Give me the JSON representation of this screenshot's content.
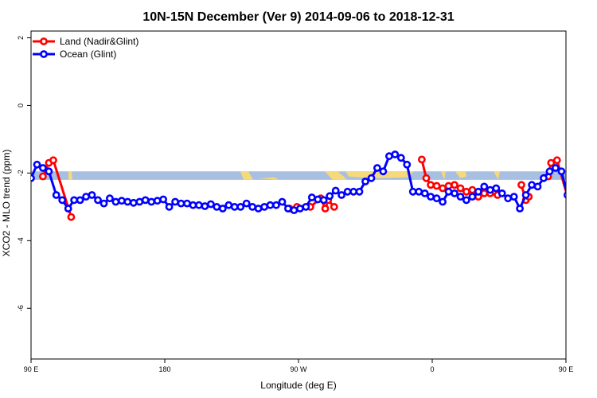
{
  "chart_data": {
    "type": "line",
    "title": "10N-15N December (Ver 9)   2014-09-06 to 2018-12-31",
    "xlabel": "Longitude (deg E)",
    "ylabel": "XCO2 - MLO trend (ppm)",
    "xlim": [
      90,
      450
    ],
    "ylim": [
      -7.5,
      2.2
    ],
    "xticks": [
      {
        "value": 90,
        "label": "90 E"
      },
      {
        "value": 180,
        "label": "180"
      },
      {
        "value": 270,
        "label": "90 W"
      },
      {
        "value": 360,
        "label": "0"
      },
      {
        "value": 450,
        "label": "90 E"
      },
      {
        "value": 540,
        "label": "180"
      }
    ],
    "yticks": [
      {
        "value": 2,
        "label": "2"
      },
      {
        "value": 0,
        "label": "0"
      },
      {
        "value": -2,
        "label": "-2"
      },
      {
        "value": -4,
        "label": "-4"
      },
      {
        "value": -6,
        "label": "-6"
      }
    ],
    "legend_position": "top-left",
    "background_band": {
      "y_min": -2.2,
      "y_max": -1.95,
      "color": "#a7bfe0",
      "land_color": "#f6d97a"
    },
    "series": [
      {
        "name": "Land (Nadir&Glint)",
        "color": "#ff0000",
        "points": [
          [
            98,
            -2.1
          ],
          [
            102,
            -1.7
          ],
          [
            105,
            -1.62
          ],
          [
            117,
            -3.3
          ],
          [
            264,
            -3.05
          ],
          [
            269,
            -3.0
          ],
          [
            278,
            -3.0
          ],
          [
            285,
            -2.75
          ],
          [
            288,
            -3.05
          ],
          [
            290,
            -2.8
          ],
          [
            294,
            -3.0
          ],
          [
            353,
            -1.6
          ],
          [
            356,
            -2.15
          ],
          [
            359,
            -2.35
          ],
          [
            363,
            -2.38
          ],
          [
            367,
            -2.45
          ],
          [
            371,
            -2.38
          ],
          [
            375,
            -2.35
          ],
          [
            379,
            -2.45
          ],
          [
            383,
            -2.55
          ],
          [
            387,
            -2.5
          ],
          [
            391,
            -2.7
          ],
          [
            395,
            -2.6
          ],
          [
            399,
            -2.6
          ],
          [
            404,
            -2.65
          ],
          [
            420,
            -2.35
          ],
          [
            423,
            -2.8
          ],
          [
            425,
            -2.7
          ],
          [
            438,
            -2.1
          ],
          [
            440,
            -1.7
          ],
          [
            444,
            -1.62
          ],
          [
            455,
            -3.3
          ]
        ]
      },
      {
        "name": "Ocean (Glint)",
        "color": "#0000ff",
        "points": [
          [
            90,
            -2.15
          ],
          [
            94,
            -1.75
          ],
          [
            98,
            -1.85
          ],
          [
            102,
            -1.95
          ],
          [
            107,
            -2.65
          ],
          [
            111,
            -2.8
          ],
          [
            115,
            -3.05
          ],
          [
            119,
            -2.8
          ],
          [
            123,
            -2.8
          ],
          [
            127,
            -2.7
          ],
          [
            131,
            -2.65
          ],
          [
            135,
            -2.8
          ],
          [
            139,
            -2.9
          ],
          [
            143,
            -2.75
          ],
          [
            147,
            -2.85
          ],
          [
            151,
            -2.82
          ],
          [
            155,
            -2.85
          ],
          [
            159,
            -2.88
          ],
          [
            163,
            -2.85
          ],
          [
            167,
            -2.8
          ],
          [
            171,
            -2.85
          ],
          [
            175,
            -2.82
          ],
          [
            179,
            -2.78
          ],
          [
            183,
            -3.0
          ],
          [
            187,
            -2.85
          ],
          [
            191,
            -2.9
          ],
          [
            195,
            -2.9
          ],
          [
            199,
            -2.95
          ],
          [
            203,
            -2.95
          ],
          [
            207,
            -2.98
          ],
          [
            211,
            -2.92
          ],
          [
            215,
            -3.0
          ],
          [
            219,
            -3.05
          ],
          [
            223,
            -2.95
          ],
          [
            227,
            -3.0
          ],
          [
            231,
            -3.0
          ],
          [
            235,
            -2.9
          ],
          [
            239,
            -3.0
          ],
          [
            243,
            -3.05
          ],
          [
            247,
            -3.0
          ],
          [
            251,
            -2.95
          ],
          [
            255,
            -2.95
          ],
          [
            259,
            -2.85
          ],
          [
            263,
            -3.05
          ],
          [
            267,
            -3.1
          ],
          [
            271,
            -3.05
          ],
          [
            275,
            -3.0
          ],
          [
            279,
            -2.72
          ],
          [
            283,
            -2.78
          ],
          [
            287,
            -2.8
          ],
          [
            291,
            -2.68
          ],
          [
            295,
            -2.52
          ],
          [
            299,
            -2.65
          ],
          [
            303,
            -2.55
          ],
          [
            307,
            -2.55
          ],
          [
            311,
            -2.55
          ],
          [
            315,
            -2.25
          ],
          [
            319,
            -2.15
          ],
          [
            323,
            -1.85
          ],
          [
            327,
            -1.95
          ],
          [
            331,
            -1.5
          ],
          [
            335,
            -1.45
          ],
          [
            339,
            -1.55
          ],
          [
            343,
            -1.75
          ],
          [
            347,
            -2.55
          ],
          [
            351,
            -2.55
          ],
          [
            355,
            -2.6
          ],
          [
            359,
            -2.7
          ],
          [
            363,
            -2.75
          ],
          [
            367,
            -2.85
          ],
          [
            371,
            -2.55
          ],
          [
            375,
            -2.6
          ],
          [
            379,
            -2.7
          ],
          [
            383,
            -2.8
          ],
          [
            387,
            -2.7
          ],
          [
            391,
            -2.55
          ],
          [
            395,
            -2.4
          ],
          [
            399,
            -2.5
          ],
          [
            403,
            -2.45
          ],
          [
            407,
            -2.6
          ],
          [
            411,
            -2.75
          ],
          [
            415,
            -2.7
          ],
          [
            419,
            -3.05
          ],
          [
            423,
            -2.65
          ],
          [
            427,
            -2.35
          ],
          [
            431,
            -2.4
          ],
          [
            435,
            -2.15
          ],
          [
            439,
            -1.95
          ],
          [
            443,
            -1.85
          ],
          [
            447,
            -1.95
          ],
          [
            451,
            -2.65
          ],
          [
            455,
            -2.8
          ],
          [
            459,
            -3.05
          ]
        ]
      }
    ]
  }
}
